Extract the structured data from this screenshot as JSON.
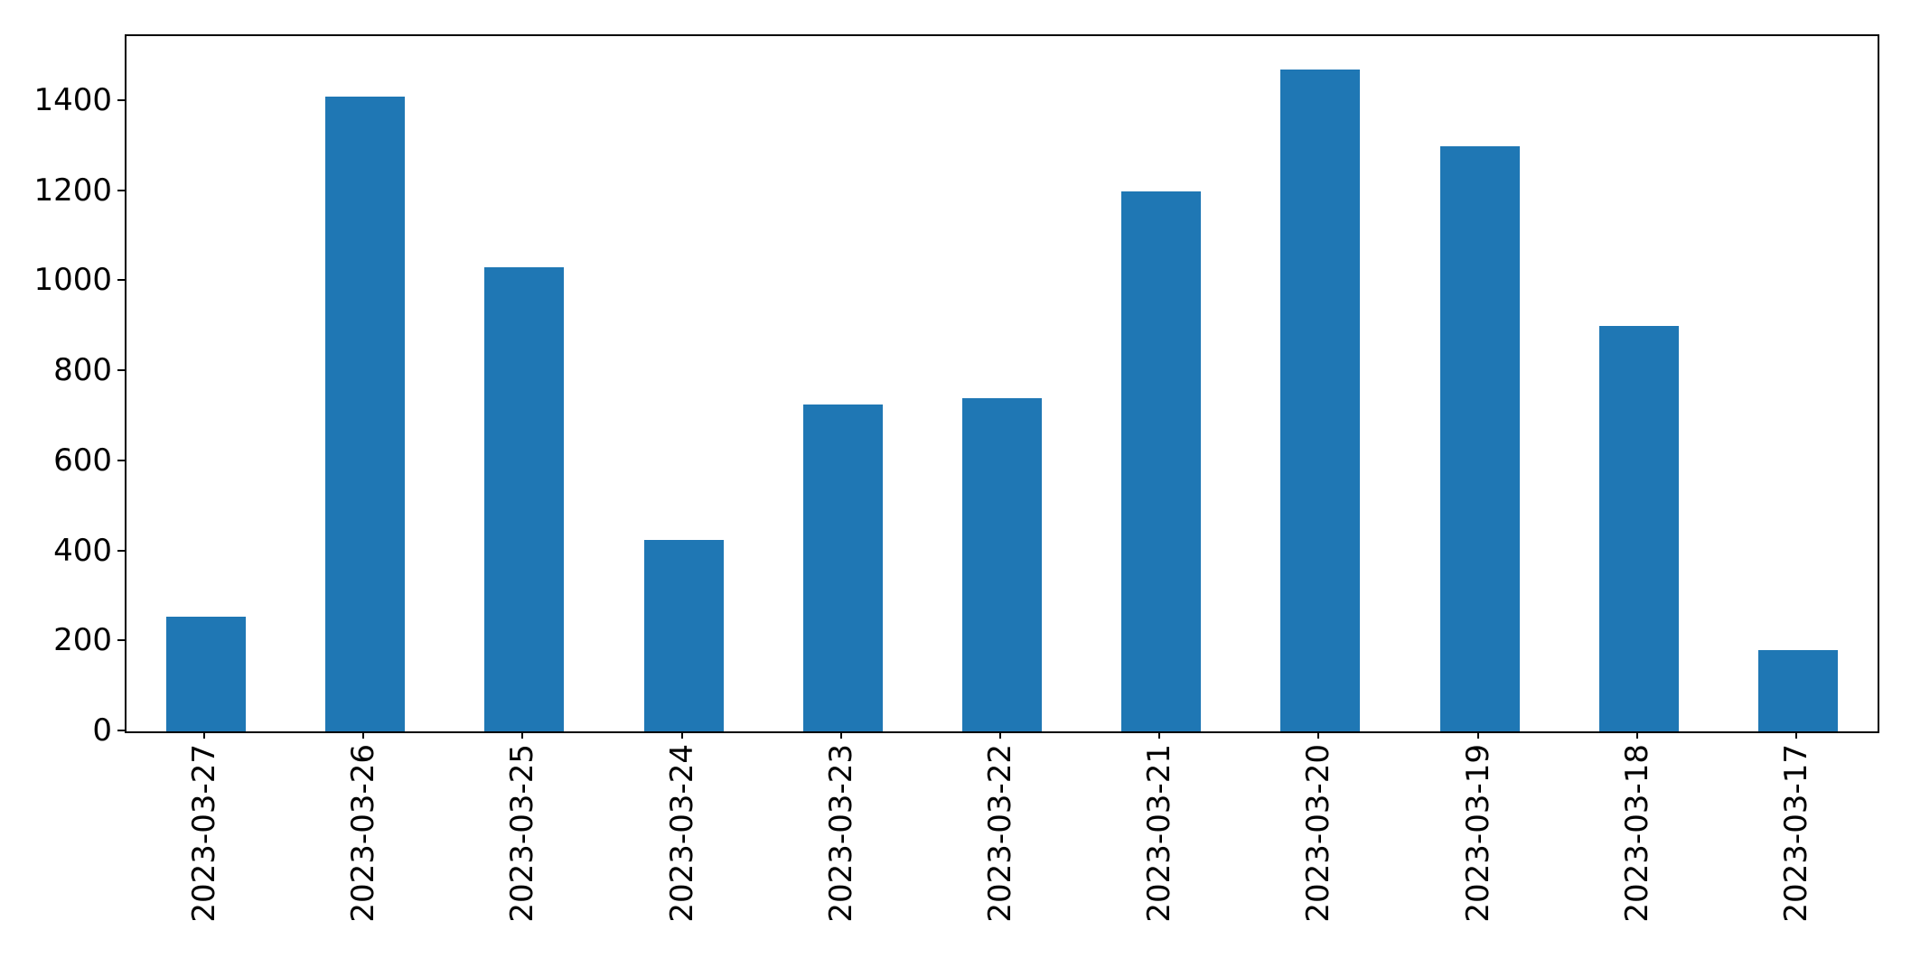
{
  "chart_data": {
    "type": "bar",
    "title": "",
    "xlabel": "",
    "ylabel": "",
    "categories": [
      "2023-03-27",
      "2023-03-26",
      "2023-03-25",
      "2023-03-24",
      "2023-03-23",
      "2023-03-22",
      "2023-03-21",
      "2023-03-20",
      "2023-03-19",
      "2023-03-18",
      "2023-03-17"
    ],
    "values": [
      255,
      1410,
      1030,
      425,
      725,
      740,
      1200,
      1470,
      1300,
      900,
      180
    ],
    "bar_color": "#1f77b4",
    "ylim": [
      0,
      1544
    ],
    "yticks": [
      0,
      200,
      400,
      600,
      800,
      1000,
      1200,
      1400
    ],
    "x_tick_rotation": 90,
    "grid": false,
    "legend": null,
    "bar_width_fraction": 0.5
  }
}
